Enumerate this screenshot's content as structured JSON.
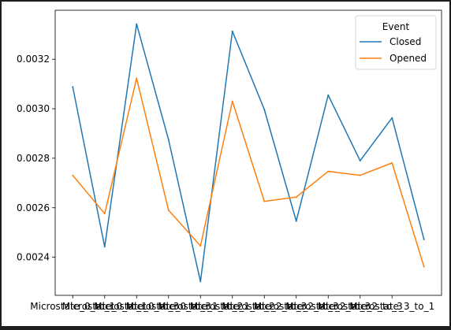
{
  "chart_data": {
    "type": "line",
    "categories": [
      "Microstate_0_to_1",
      "Microstate_0_to_1",
      "Microstate_0_to_3",
      "Microstate_0_to_3",
      "Microstate_1_to_2",
      "Microstate_1_to_2",
      "Microstate_2_to_3",
      "Microstate_2_to_3",
      "Microstate_2_to_3",
      "Microstate_2_to_3",
      "Microstate_3_to_1",
      "Microstate_3_to_1"
    ],
    "tick_labels": [
      "Microstate_0_to_1",
      "Microstate_0_to_1",
      "Microstate_0_to_3",
      "Microstate_0_to_3",
      "Microstate_1_to_2",
      "Microstate_1_to_2",
      "Microstate_2_to_3",
      "Microstate_2_to_3",
      "Microstate_2_to_3",
      "Microstate_2_to_3",
      "Microstate_3_to_1"
    ],
    "tick_positions": [
      0,
      1,
      2,
      3,
      4,
      5,
      6,
      7,
      8,
      9,
      10
    ],
    "series": [
      {
        "name": "Closed",
        "color": "#1f77b4",
        "values": [
          0.003088,
          0.002442,
          0.003342,
          0.002875,
          0.002302,
          0.003313,
          0.002997,
          0.002546,
          0.003055,
          0.00279,
          0.002963,
          0.002472
        ]
      },
      {
        "name": "Opened",
        "color": "#ff7f0e",
        "values": [
          0.002731,
          0.002576,
          0.003123,
          0.00259,
          0.002446,
          0.00303,
          0.002626,
          0.002643,
          0.002747,
          0.002731,
          0.002781,
          0.002362
        ]
      }
    ],
    "yticks": [
      0.0024,
      0.0026,
      0.0028,
      0.003,
      0.0032
    ],
    "ytick_labels": [
      "0.0024",
      "0.0026",
      "0.0028",
      "0.0030",
      "0.0032"
    ],
    "ylim": [
      0.002246,
      0.003398
    ],
    "xlim": [
      -0.55,
      11.55
    ],
    "legend": {
      "title": "Event",
      "placement": "top-right"
    },
    "grid": false
  }
}
